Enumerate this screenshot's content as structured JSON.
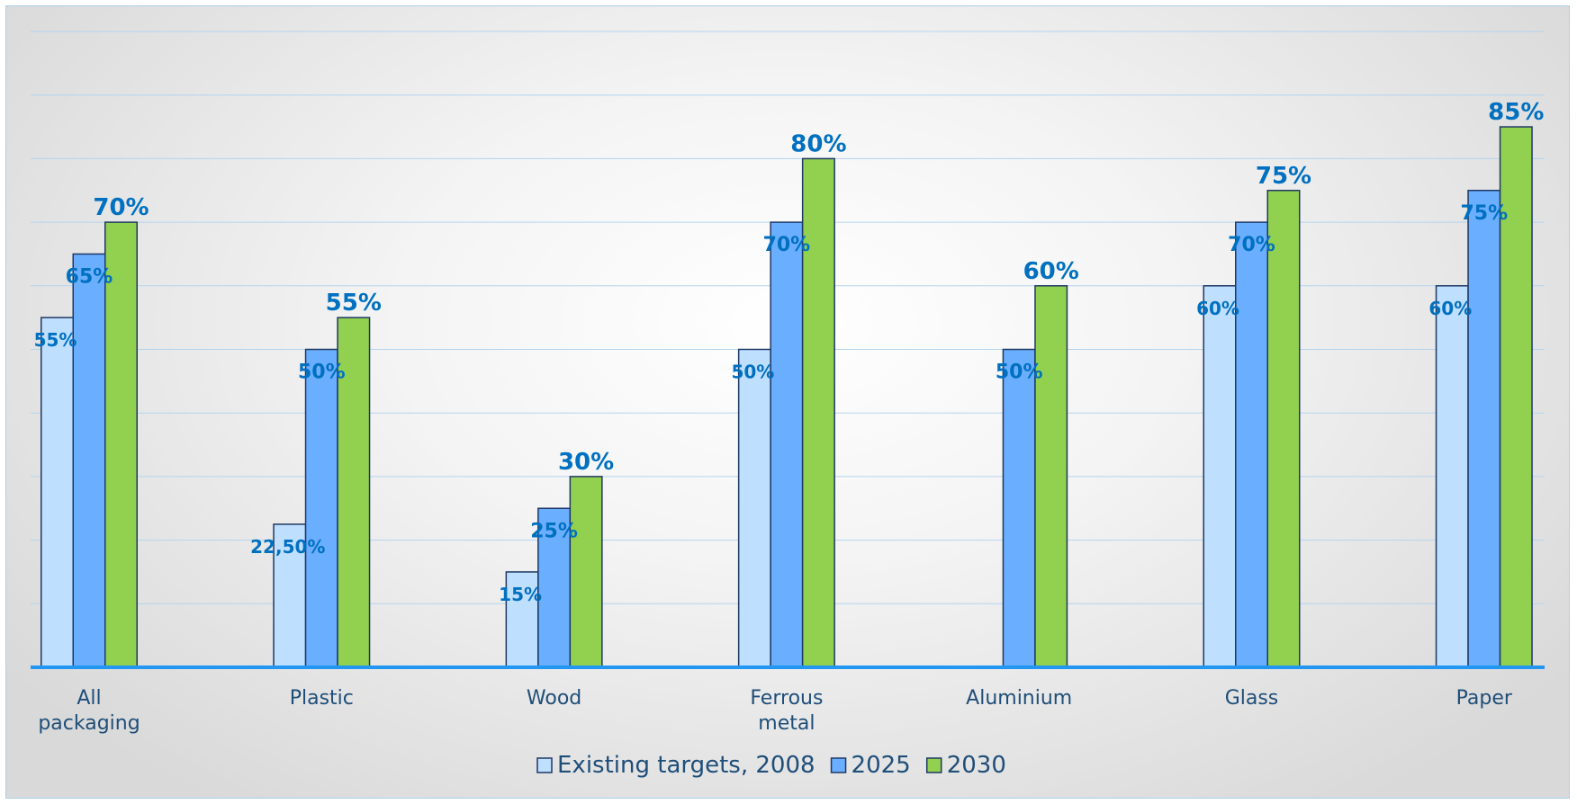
{
  "chart_data": {
    "type": "bar",
    "categories": [
      "All packaging",
      "Plastic",
      "Wood",
      "Ferrous metal",
      "Aluminium",
      "Glass",
      "Paper"
    ],
    "category_lines": [
      [
        "All",
        "packaging"
      ],
      [
        "Plastic"
      ],
      [
        "Wood"
      ],
      [
        "Ferrous",
        "metal"
      ],
      [
        "Aluminium"
      ],
      [
        "Glass"
      ],
      [
        "Paper"
      ]
    ],
    "series": [
      {
        "name": "Existing targets, 2008",
        "values": [
          55,
          22.5,
          15,
          50,
          null,
          60,
          60
        ],
        "labels": [
          "55%",
          "22,50%",
          "15%",
          "50%",
          "",
          "60%",
          "60%"
        ],
        "color": "#bfdfff"
      },
      {
        "name": "2025",
        "values": [
          65,
          50,
          25,
          70,
          50,
          70,
          75
        ],
        "labels": [
          "65%",
          "50%",
          "25%",
          "70%",
          "50%",
          "70%",
          "75%"
        ],
        "color": "#6aaeff"
      },
      {
        "name": "2030",
        "values": [
          70,
          55,
          30,
          80,
          60,
          75,
          85
        ],
        "labels": [
          "70%",
          "55%",
          "30%",
          "80%",
          "60%",
          "75%",
          "85%"
        ],
        "color": "#92d050"
      }
    ],
    "ylim": [
      0,
      100
    ],
    "grid": true,
    "legend_position": "bottom",
    "colors": {
      "bar_border": "#1f3864",
      "label": "#0070c0",
      "axis": "#2196f3",
      "grid": "#b4d4ee",
      "text": "#1f4e79"
    }
  }
}
